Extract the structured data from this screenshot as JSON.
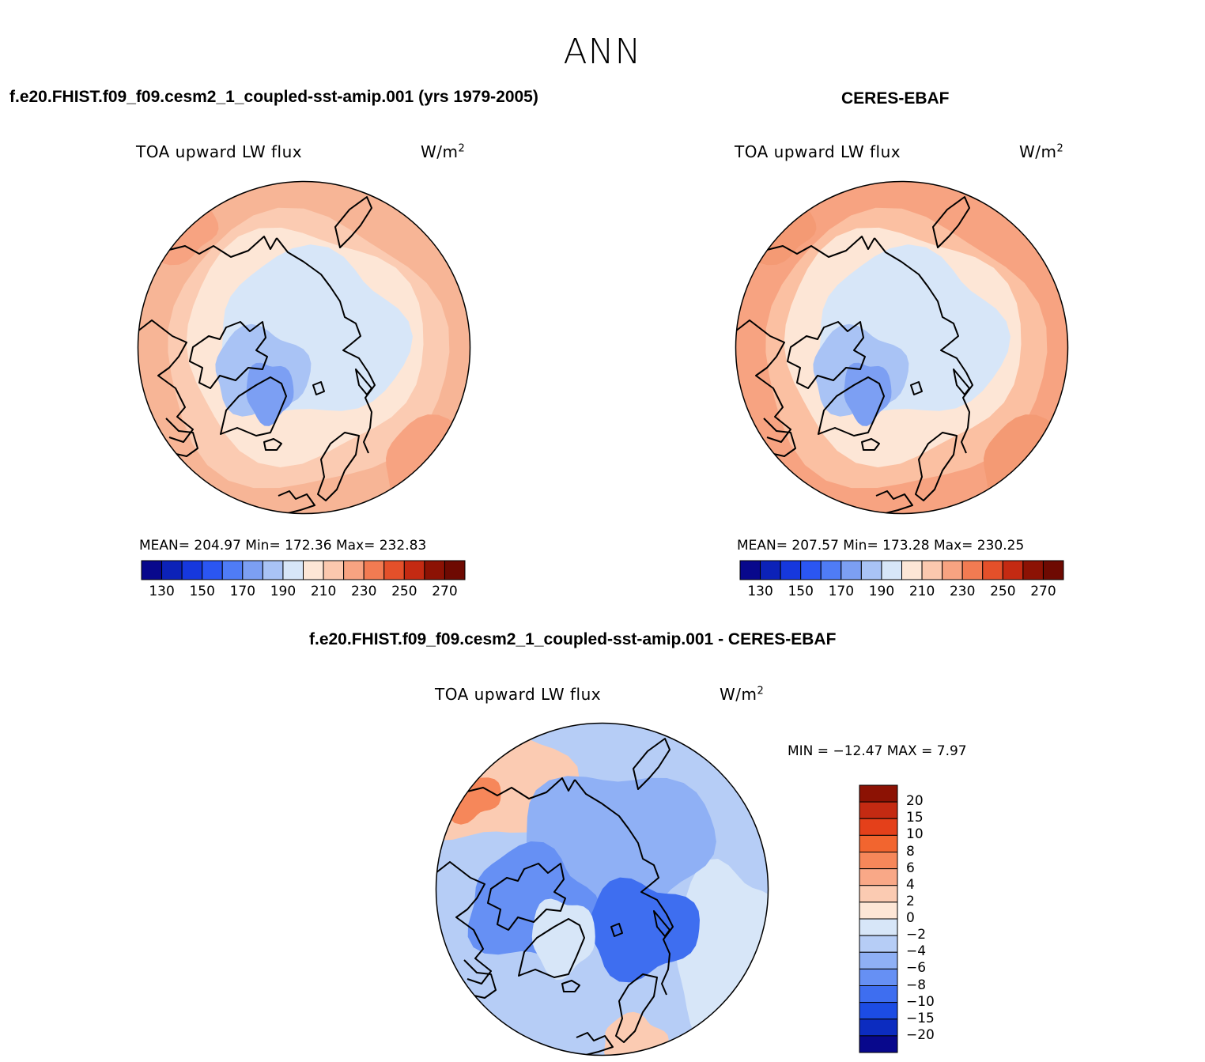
{
  "season": "ANN",
  "panels": [
    {
      "id": "model",
      "title": "f.e20.FHIST.f09_f09.cesm2_1_coupled-sst-amip.001 (yrs 1979-2005)",
      "variable": "TOA upward LW flux",
      "units_base": "W/m",
      "units_exp": "2",
      "stats_text": "MEAN= 204.97   Min= 172.36   Max= 232.83",
      "stats": {
        "mean": 204.97,
        "min": 172.36,
        "max": 232.83
      }
    },
    {
      "id": "obs",
      "title": "CERES-EBAF",
      "variable": "TOA upward LW flux",
      "units_base": "W/m",
      "units_exp": "2",
      "stats_text": "MEAN= 207.57   Min= 173.28   Max= 230.25",
      "stats": {
        "mean": 207.57,
        "min": 173.28,
        "max": 230.25
      }
    },
    {
      "id": "diff",
      "title": "f.e20.FHIST.f09_f09.cesm2_1_coupled-sst-amip.001 - CERES-EBAF",
      "variable": "TOA upward LW flux",
      "units_base": "W/m",
      "units_exp": "2",
      "stats_text": "MIN = −12.47 MAX =    7.97",
      "stats": {
        "min": -12.47,
        "max": 7.97
      }
    }
  ],
  "colorbar_abs": {
    "tick_labels": [
      "130",
      "150",
      "170",
      "190",
      "210",
      "230",
      "250",
      "270"
    ],
    "levels": [
      130,
      140,
      150,
      160,
      170,
      180,
      190,
      200,
      210,
      220,
      230,
      240,
      250,
      260,
      270
    ],
    "colors": [
      "#08088c",
      "#0c22b8",
      "#1638dd",
      "#2b56f2",
      "#4f7cf6",
      "#7c9ff3",
      "#a9c3f5",
      "#d7e6f8",
      "#fde6d6",
      "#fbc8ae",
      "#f7a381",
      "#f27b52",
      "#e4502a",
      "#c42a12",
      "#8c1204",
      "#6e0a02"
    ]
  },
  "colorbar_diff": {
    "tick_labels": [
      "20",
      "15",
      "10",
      "8",
      "6",
      "4",
      "2",
      "0",
      "−2",
      "−4",
      "−6",
      "−8",
      "−10",
      "−15",
      "−20"
    ],
    "levels": [
      20,
      15,
      10,
      8,
      6,
      4,
      2,
      0,
      -2,
      -4,
      -6,
      -8,
      -10,
      -15,
      -20
    ],
    "colors": [
      "#8c1204",
      "#c42a12",
      "#e4401a",
      "#f2652f",
      "#f6875a",
      "#f9a887",
      "#fbcbb2",
      "#fde6d6",
      "#d7e6f8",
      "#b6cdf6",
      "#8fb0f5",
      "#6690f4",
      "#3e6ef0",
      "#1c4ce4",
      "#0c2cc0",
      "#08088c"
    ]
  },
  "map_colors": {
    "model": {
      "outer": "#f7b596",
      "mid": "#fbcbb2",
      "inner": "#fde6d6",
      "ice": "#d7e6f8",
      "cold": "#a9c3f5",
      "coldest": "#7c9ff3",
      "warm": "#f7a381"
    },
    "obs": {
      "outer": "#f7a381",
      "mid": "#fbc0a2",
      "inner": "#fde6d6",
      "ice": "#d7e6f8",
      "cold": "#a9c3f5",
      "coldest": "#7c9ff3",
      "warm": "#f49a74"
    },
    "diff": {
      "base": "#b6cdf6",
      "mid": "#8fb0f5",
      "strong": "#6690f4",
      "stronger": "#3e6ef0",
      "light": "#d7e6f8",
      "warm": "#fbcbb2",
      "hot": "#f6875a"
    }
  }
}
